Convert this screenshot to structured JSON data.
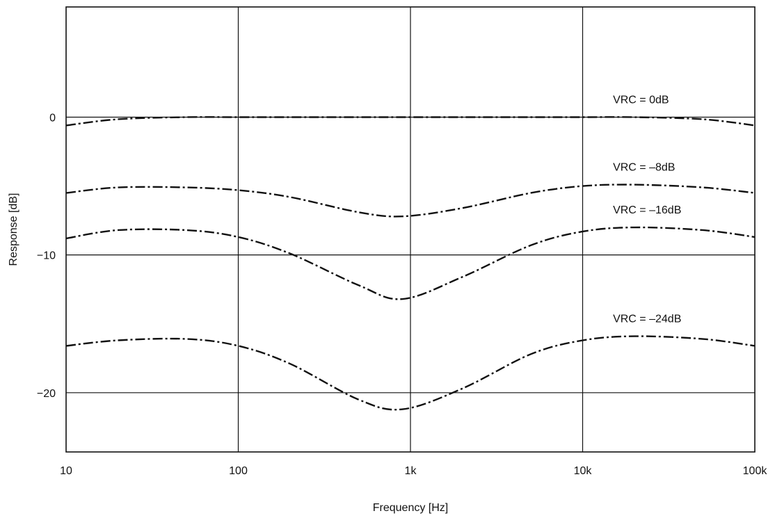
{
  "chart_data": {
    "type": "line",
    "title": "",
    "xlabel": "Frequency [Hz]",
    "ylabel": "Response [dB]",
    "xscale": "log",
    "xlim": [
      10,
      100000
    ],
    "ylim": [
      -24.3,
      8
    ],
    "grid": true,
    "x_ticks": [
      {
        "value": 10,
        "label": "10"
      },
      {
        "value": 100,
        "label": "100"
      },
      {
        "value": 1000,
        "label": "1k"
      },
      {
        "value": 10000,
        "label": "10k"
      },
      {
        "value": 100000,
        "label": "100k"
      }
    ],
    "y_ticks": [
      {
        "value": 0,
        "label": "0"
      },
      {
        "value": -10,
        "label": "−10"
      },
      {
        "value": -20,
        "label": "−20"
      }
    ],
    "x": [
      10,
      20,
      50,
      100,
      200,
      500,
      900,
      2000,
      5000,
      10000,
      20000,
      50000,
      100000
    ],
    "series": [
      {
        "name": "VRC = 0dB",
        "values": [
          -0.6,
          -0.15,
          0,
          0,
          0,
          0,
          0,
          0,
          0,
          0,
          0,
          -0.15,
          -0.6
        ]
      },
      {
        "name": "VRC = –8dB",
        "values": [
          -5.5,
          -5.1,
          -5.1,
          -5.3,
          -5.8,
          -6.9,
          -7.2,
          -6.6,
          -5.5,
          -5.0,
          -4.9,
          -5.1,
          -5.5
        ]
      },
      {
        "name": "VRC = –16dB",
        "values": [
          -8.8,
          -8.2,
          -8.2,
          -8.7,
          -9.9,
          -12.2,
          -13.2,
          -11.6,
          -9.3,
          -8.3,
          -8.0,
          -8.2,
          -8.7
        ]
      },
      {
        "name": "VRC = –24dB",
        "values": [
          -16.6,
          -16.2,
          -16.1,
          -16.6,
          -17.9,
          -20.5,
          -21.2,
          -19.7,
          -17.2,
          -16.2,
          -15.9,
          -16.1,
          -16.6
        ]
      }
    ]
  }
}
